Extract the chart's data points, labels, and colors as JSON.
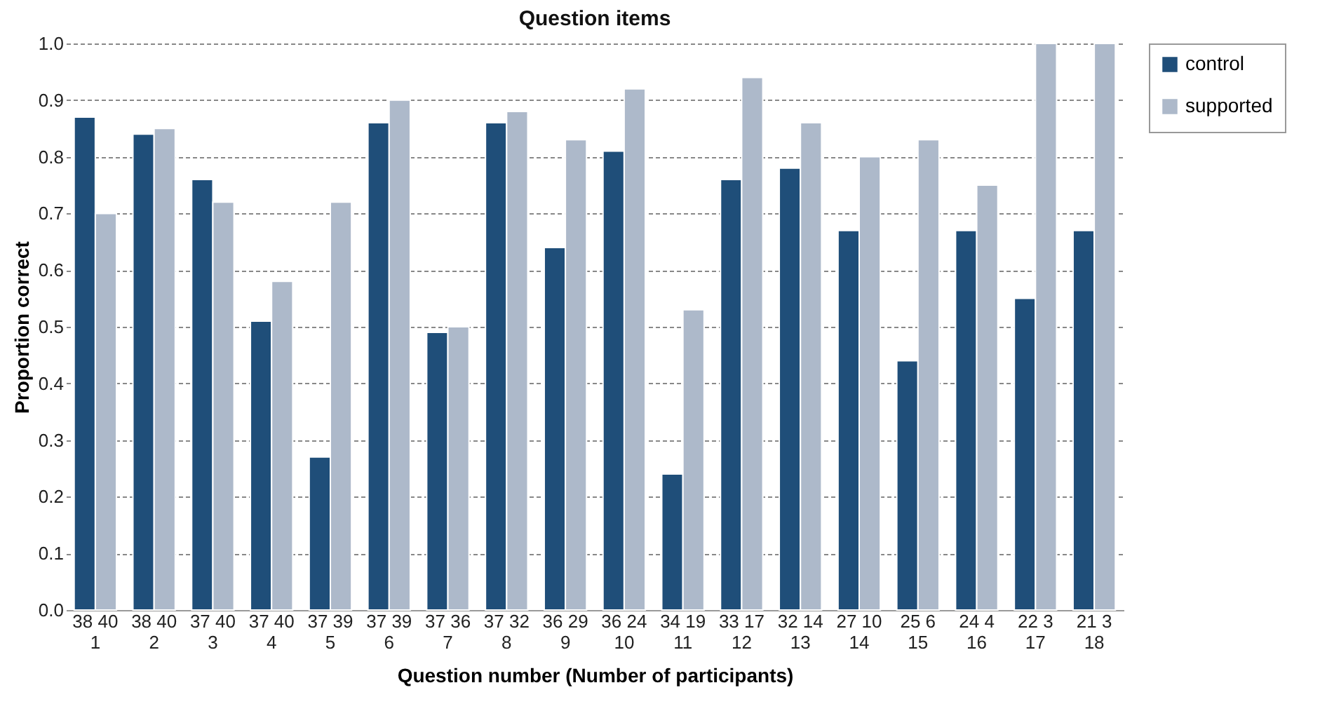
{
  "chart_data": {
    "type": "bar",
    "title": "Question items",
    "xlabel": "Question number (Number of participants)",
    "ylabel": "Proportion correct",
    "categories": [
      "38 40\n1",
      "38 40\n2",
      "37 40\n3",
      "37 40\n4",
      "37 39\n5",
      "37 39\n6",
      "37 36\n7",
      "37 32\n8",
      "36 29\n9",
      "36 24\n10",
      "34 19\n11",
      "33 17\n12",
      "32 14\n13",
      "27 10\n14",
      "25 6\n15",
      "24 4\n16",
      "22 3\n17",
      "21 3\n18"
    ],
    "series": [
      {
        "name": "control",
        "color": "#1f4e79",
        "values": [
          0.87,
          0.84,
          0.76,
          0.51,
          0.27,
          0.86,
          0.49,
          0.86,
          0.64,
          0.81,
          0.24,
          0.76,
          0.78,
          0.67,
          0.44,
          0.67,
          0.55,
          0.67
        ]
      },
      {
        "name": "supported",
        "color": "#adb9ca",
        "values": [
          0.7,
          0.85,
          0.72,
          0.58,
          0.72,
          0.9,
          0.5,
          0.88,
          0.83,
          0.92,
          0.53,
          0.94,
          0.86,
          0.8,
          0.83,
          0.75,
          1.0,
          1.0
        ]
      }
    ],
    "ylim": [
      0,
      1.0
    ],
    "yticks": [
      {
        "value": 0,
        "label": "0.0"
      },
      0.1,
      0.2,
      0.3,
      0.4,
      0.5,
      0.6,
      0.7,
      0.8,
      0.9,
      {
        "value": 1,
        "label": "1.0"
      }
    ],
    "grid": "y",
    "legend": "top right"
  }
}
